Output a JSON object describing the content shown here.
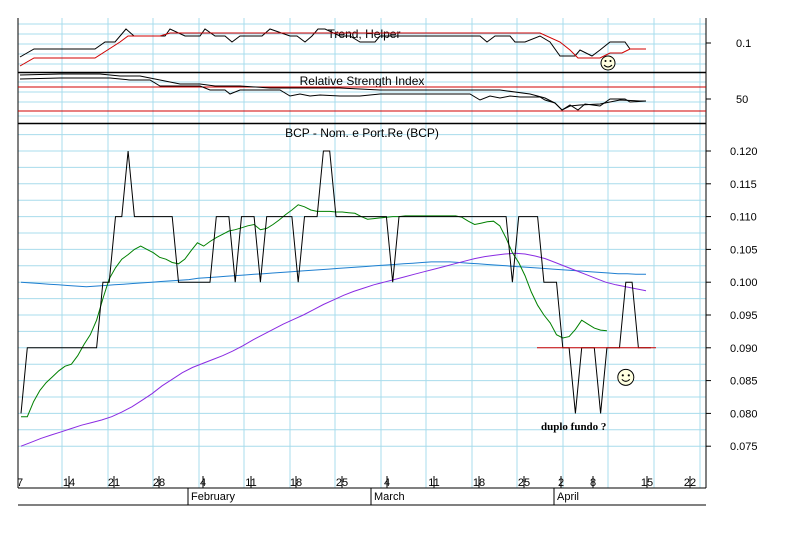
{
  "colors": {
    "grid": "#a8dcec",
    "price": "#000000",
    "ma_green": "#008000",
    "ma_blue": "#1e7fd0",
    "ma_purple": "#8a2be2",
    "signal_red": "#d00000"
  },
  "trend_panel": {
    "title": "Trend, Helper",
    "tick_labels": [
      "0.1"
    ],
    "smiley_icon": "smiley-icon"
  },
  "rsi_panel": {
    "title": "Relative Strength Index",
    "tick_labels": [
      "50"
    ]
  },
  "chart_data": [
    {
      "type": "line",
      "title": "BCP - Nom. e Port.Re (BCP)",
      "xlabel": "",
      "ylabel": "",
      "ylim": [
        0.072,
        0.127
      ],
      "y_ticks": [
        "0.120",
        "0.115",
        "0.110",
        "0.105",
        "0.100",
        "0.095",
        "0.090",
        "0.085",
        "0.080",
        "0.075"
      ],
      "x_day_labels": [
        "7",
        "14",
        "21",
        "28",
        "4",
        "11",
        "18",
        "25",
        "4",
        "11",
        "18",
        "25",
        "2",
        "8",
        "15",
        "22"
      ],
      "x_month_labels": [
        "February",
        "March",
        "April"
      ],
      "grid": true,
      "series": [
        {
          "role": "price",
          "values": [
            0.08,
            0.09,
            0.09,
            0.09,
            0.09,
            0.09,
            0.09,
            0.09,
            0.09,
            0.09,
            0.09,
            0.09,
            0.09,
            0.1,
            0.1,
            0.11,
            0.11,
            0.12,
            0.11,
            0.11,
            0.11,
            0.11,
            0.11,
            0.11,
            0.11,
            0.1,
            0.1,
            0.1,
            0.1,
            0.1,
            0.1,
            0.11,
            0.11,
            0.11,
            0.1,
            0.11,
            0.11,
            0.11,
            0.1,
            0.11,
            0.11,
            0.11,
            0.11,
            0.11,
            0.1,
            0.11,
            0.11,
            0.11,
            0.12,
            0.12,
            0.11,
            0.11,
            0.11,
            0.11,
            0.11,
            0.11,
            0.11,
            0.11,
            0.11,
            0.1,
            0.11,
            0.11,
            0.11,
            0.11,
            0.11,
            0.11,
            0.11,
            0.11,
            0.11,
            0.11,
            0.11,
            0.11,
            0.11,
            0.11,
            0.11,
            0.11,
            0.11,
            0.11,
            0.1,
            0.11,
            0.11,
            0.11,
            0.11,
            0.1,
            0.1,
            0.1,
            0.09,
            0.09,
            0.08,
            0.09,
            0.09,
            0.09,
            0.08,
            0.09,
            0.09,
            0.09,
            0.1,
            0.1,
            0.09,
            0.09,
            0.09
          ]
        },
        {
          "role": "ma-green",
          "values": [
            0.0795,
            0.0795,
            0.0818,
            0.0835,
            0.0847,
            0.0856,
            0.0865,
            0.0872,
            0.0875,
            0.0888,
            0.0905,
            0.092,
            0.0942,
            0.0975,
            0.1005,
            0.1022,
            0.1035,
            0.1042,
            0.105,
            0.1055,
            0.105,
            0.1045,
            0.1038,
            0.1035,
            0.103,
            0.1028,
            0.1035,
            0.1048,
            0.106,
            0.1055,
            0.1062,
            0.1068,
            0.1073,
            0.1078,
            0.108,
            0.1083,
            0.1086,
            0.1088,
            0.108,
            0.1082,
            0.1088,
            0.1095,
            0.1103,
            0.111,
            0.1118,
            0.1115,
            0.111,
            0.1108,
            0.1108,
            0.1108,
            0.1107,
            0.1107,
            0.1106,
            0.1105,
            0.11,
            0.1096,
            0.1097,
            0.1098,
            0.1099,
            0.11,
            0.11,
            0.1101,
            0.1101,
            0.1101,
            0.1101,
            0.1101,
            0.1101,
            0.1101,
            0.1101,
            0.1101,
            0.1099,
            0.1093,
            0.1088,
            0.109,
            0.1092,
            0.1093,
            0.1086,
            0.1067,
            0.1045,
            0.103,
            0.101,
            0.0985,
            0.0965,
            0.095,
            0.0938,
            0.092,
            0.0915,
            0.0917,
            0.0928,
            0.0942,
            0.0936,
            0.093,
            0.0927,
            0.0926
          ]
        },
        {
          "role": "ma-blue",
          "values": [
            0.1,
            0.0999,
            0.0998,
            0.0997,
            0.0996,
            0.0995,
            0.0994,
            0.0993,
            0.0994,
            0.0995,
            0.0996,
            0.0997,
            0.0998,
            0.0999,
            0.1,
            0.1001,
            0.1002,
            0.1003,
            0.1004,
            0.1006,
            0.1007,
            0.1008,
            0.1009,
            0.101,
            0.1011,
            0.1012,
            0.1013,
            0.1014,
            0.1015,
            0.1016,
            0.1017,
            0.1018,
            0.1019,
            0.102,
            0.1021,
            0.1022,
            0.1023,
            0.1024,
            0.1025,
            0.1026,
            0.1027,
            0.1028,
            0.1029,
            0.103,
            0.1031,
            0.1031,
            0.1031,
            0.103,
            0.1029,
            0.1028,
            0.1027,
            0.1026,
            0.1025,
            0.1024,
            0.1023,
            0.1022,
            0.1021,
            0.102,
            0.1019,
            0.1018,
            0.1017,
            0.1016,
            0.1015,
            0.1014,
            0.1013,
            0.1013,
            0.1012,
            0.1012
          ]
        },
        {
          "role": "ma-purple",
          "values": [
            0.075,
            0.0756,
            0.0762,
            0.0767,
            0.0772,
            0.0777,
            0.0782,
            0.0786,
            0.079,
            0.0795,
            0.0802,
            0.081,
            0.082,
            0.083,
            0.0842,
            0.0852,
            0.0862,
            0.087,
            0.0876,
            0.0882,
            0.0888,
            0.0895,
            0.0903,
            0.0912,
            0.092,
            0.0928,
            0.0936,
            0.0943,
            0.095,
            0.0958,
            0.0966,
            0.0973,
            0.098,
            0.0986,
            0.0991,
            0.0996,
            0.1,
            0.1004,
            0.1008,
            0.1012,
            0.1016,
            0.102,
            0.1024,
            0.1028,
            0.1032,
            0.1036,
            0.1039,
            0.1041,
            0.1043,
            0.1044,
            0.1043,
            0.104,
            0.1036,
            0.103,
            0.1024,
            0.1018,
            0.1012,
            0.1006,
            0.1,
            0.0996,
            0.0993,
            0.099,
            0.0987
          ]
        }
      ],
      "support_level": 0.09,
      "annotations": [
        {
          "text": "duplo fundo ?",
          "x_index": 88,
          "y": 0.0775
        },
        {
          "text": "☺",
          "icon": "smiley-icon",
          "x_index": 96,
          "y": 0.0855
        }
      ]
    }
  ]
}
